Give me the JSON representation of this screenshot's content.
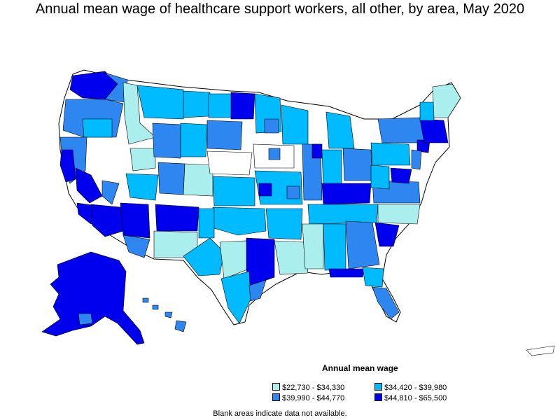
{
  "title": "Annual mean wage of healthcare support workers, all other, by area, May 2020",
  "legend": {
    "title": "Annual mean wage",
    "items": [
      {
        "label": "$22,730 - $34,330",
        "color": "#aaeeee"
      },
      {
        "label": "$34,420 - $39,980",
        "color": "#00bbff"
      },
      {
        "label": "$39,990 - $44,770",
        "color": "#2e86f0"
      },
      {
        "label": "$44,810 - $65,500",
        "color": "#0000ee"
      }
    ]
  },
  "footnote": "Blank areas indicate data not available.",
  "map_regions": [
    {
      "region": "Alaska",
      "wage_class": 3
    },
    {
      "region": "Hawaii",
      "wage_class": 1
    },
    {
      "region": "Washington coast",
      "wage_class": 3
    },
    {
      "region": "California coast",
      "wage_class": 3
    },
    {
      "region": "Arizona",
      "wage_class": 3
    },
    {
      "region": "New Mexico",
      "wage_class": 0
    },
    {
      "region": "Montana",
      "wage_class": 1
    },
    {
      "region": "Wyoming",
      "wage_class": 2
    },
    {
      "region": "Kansas",
      "wage_class": 1
    },
    {
      "region": "North Dakota",
      "wage_class": 3
    },
    {
      "region": "Texas east",
      "wage_class": 3
    },
    {
      "region": "Florida",
      "wage_class": 2
    },
    {
      "region": "Maine",
      "wage_class": 0
    }
  ]
}
